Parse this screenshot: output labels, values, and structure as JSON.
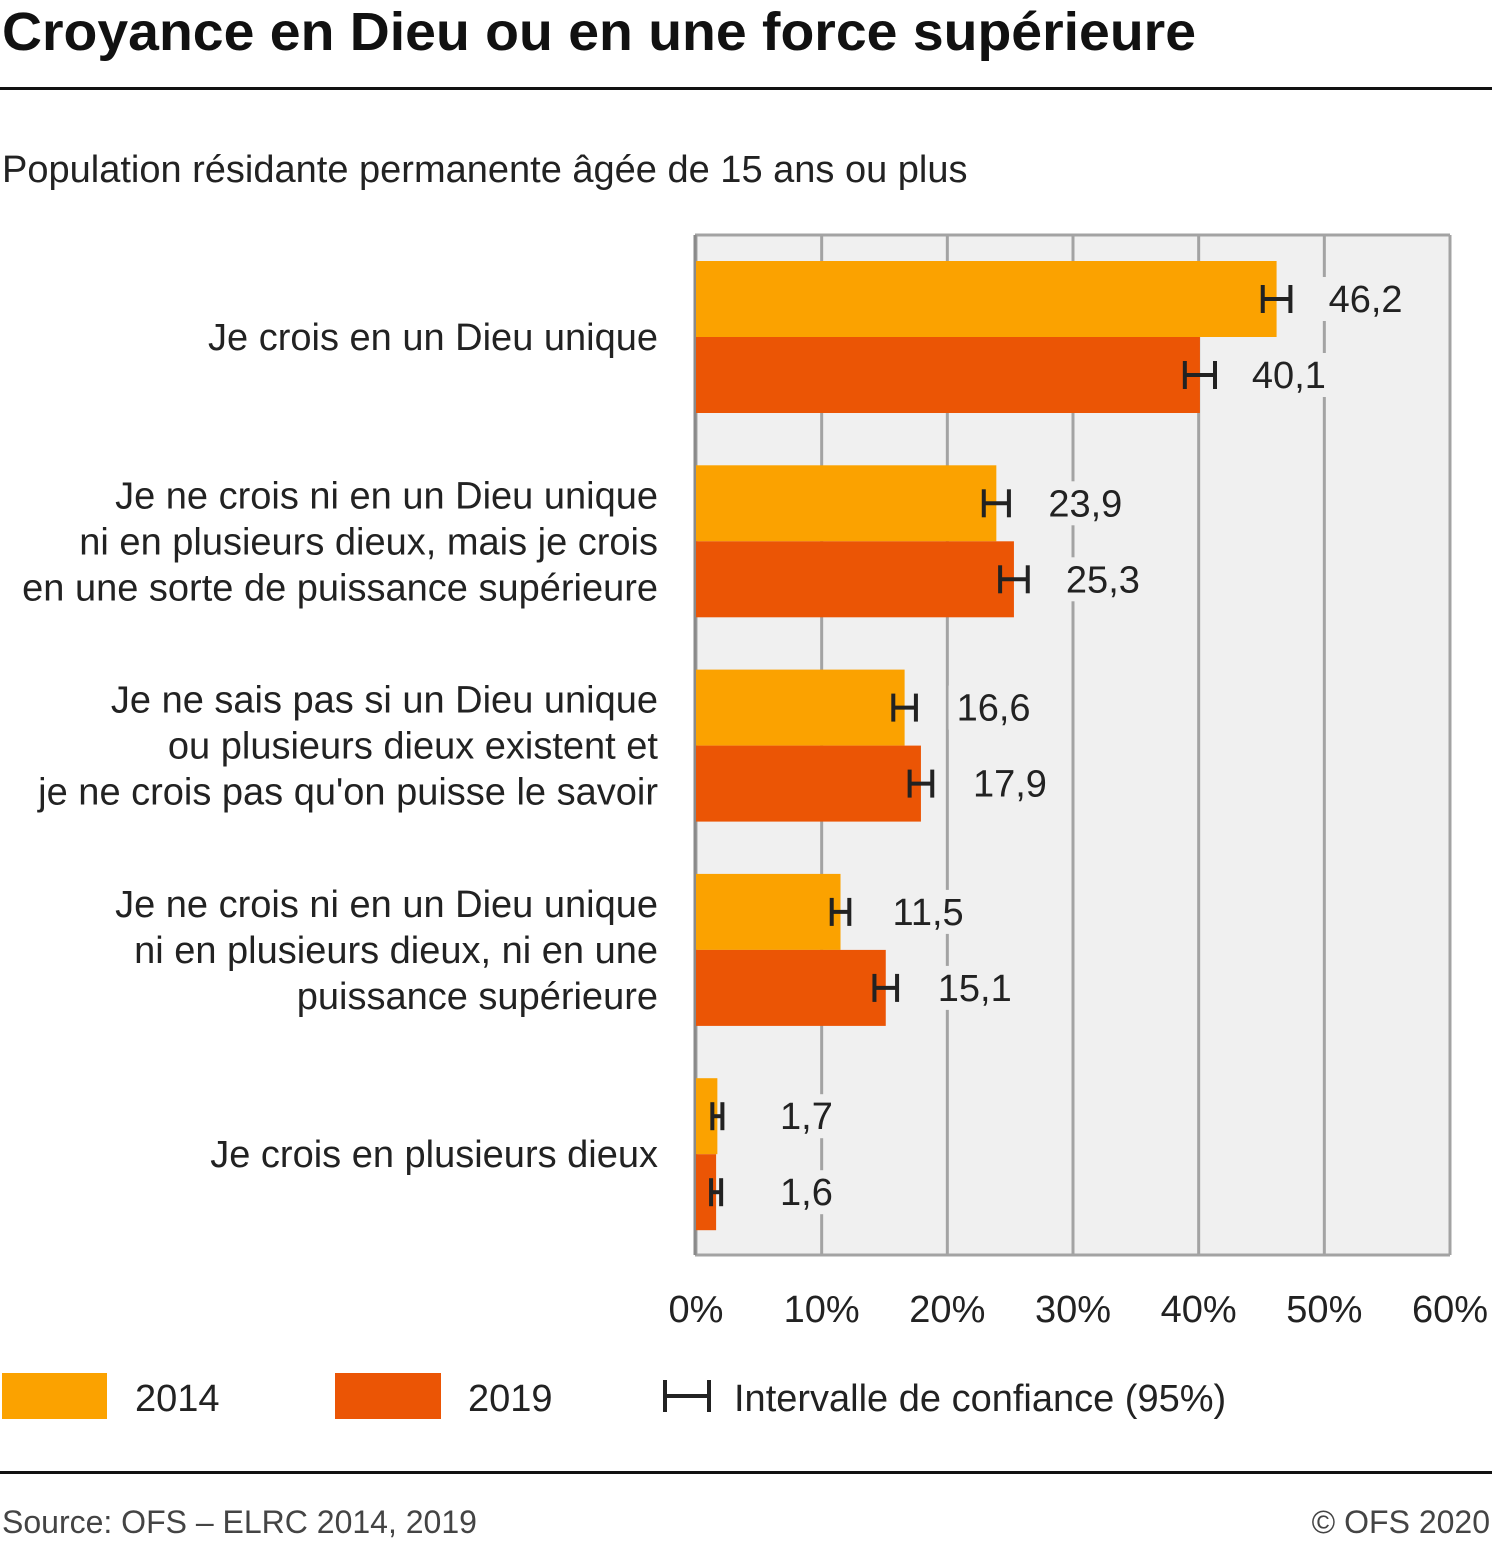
{
  "chart_data": {
    "type": "bar",
    "orientation": "horizontal",
    "title": "Croyance en Dieu ou en une force supérieure",
    "subtitle": "Population résidante permanente âgée de 15 ans ou plus",
    "categories": [
      [
        "Je crois en un Dieu unique"
      ],
      [
        "Je ne crois ni en un Dieu unique",
        "ni en plusieurs dieux, mais je crois",
        "en une sorte de puissance supérieure"
      ],
      [
        "Je ne sais pas si un Dieu unique",
        "ou plusieurs dieux existent et",
        "je ne crois pas qu'on puisse le savoir"
      ],
      [
        "Je ne crois ni en un Dieu unique",
        "ni en plusieurs dieux, ni en une",
        "puissance supérieure"
      ],
      [
        "Je crois en plusieurs dieux"
      ]
    ],
    "series": [
      {
        "name": "2014",
        "color": "#FBA200",
        "values": [
          46.2,
          23.9,
          16.6,
          11.5,
          1.7
        ],
        "ci": [
          1.1,
          1.0,
          0.9,
          0.7,
          0.4
        ]
      },
      {
        "name": "2019",
        "color": "#EB5505",
        "values": [
          40.1,
          25.3,
          17.9,
          15.1,
          1.6
        ],
        "ci": [
          1.2,
          1.1,
          0.9,
          0.9,
          0.4
        ]
      }
    ],
    "xlim": [
      0,
      60
    ],
    "xticks": [
      "0%",
      "10%",
      "20%",
      "30%",
      "40%",
      "50%",
      "60%"
    ],
    "grid": true,
    "legend_position": "bottom",
    "ci_legend": "Intervalle de confiance (95%)"
  },
  "footer": {
    "source": "Source: OFS – ELRC 2014, 2019",
    "copyright": "© OFS 2020"
  }
}
